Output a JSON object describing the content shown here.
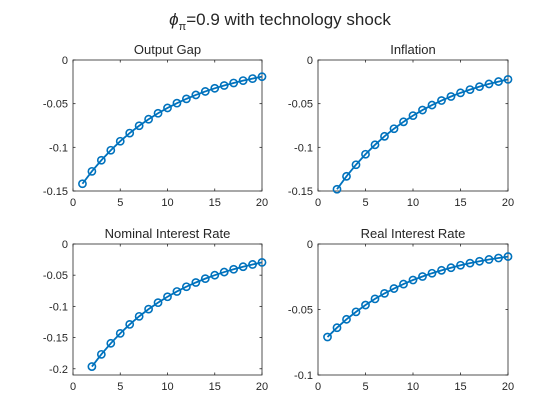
{
  "figure": {
    "suptitle": {
      "phi": "ϕ",
      "sub": "π",
      "rest": "=0.9 with technology shock"
    },
    "line_color": "#0072BD"
  },
  "chart_data": [
    {
      "type": "line",
      "title": "Output Gap",
      "xlabel": "",
      "ylabel": "",
      "xlim": [
        0,
        20
      ],
      "ylim": [
        -0.15,
        0
      ],
      "xticks": [
        0,
        5,
        10,
        15,
        20
      ],
      "yticks": [
        -0.15,
        -0.1,
        -0.05,
        0
      ],
      "xtick_labels": [
        "0",
        "5",
        "10",
        "15",
        "20"
      ],
      "ytick_labels": [
        "-0.15",
        "-0.1",
        "-0.05",
        "0"
      ],
      "marker": "circle",
      "x": [
        1,
        2,
        3,
        4,
        5,
        6,
        7,
        8,
        9,
        10,
        11,
        12,
        13,
        14,
        15,
        16,
        17,
        18,
        19,
        20
      ],
      "y": [
        -0.1417,
        -0.1275,
        -0.1148,
        -0.1033,
        -0.093,
        -0.0837,
        -0.0753,
        -0.0678,
        -0.061,
        -0.0549,
        -0.0494,
        -0.0445,
        -0.04,
        -0.036,
        -0.0324,
        -0.0292,
        -0.0263,
        -0.0236,
        -0.0213,
        -0.0191
      ]
    },
    {
      "type": "line",
      "title": "Inflation",
      "xlabel": "",
      "ylabel": "",
      "xlim": [
        0,
        20
      ],
      "ylim": [
        -0.15,
        0
      ],
      "xticks": [
        0,
        5,
        10,
        15,
        20
      ],
      "yticks": [
        -0.15,
        -0.1,
        -0.05,
        0
      ],
      "xtick_labels": [
        "0",
        "5",
        "10",
        "15",
        "20"
      ],
      "ytick_labels": [
        "-0.15",
        "-0.1",
        "-0.05",
        "0"
      ],
      "marker": "circle",
      "x": [
        2,
        3,
        4,
        5,
        6,
        7,
        8,
        9,
        10,
        11,
        12,
        13,
        14,
        15,
        16,
        17,
        18,
        19,
        20
      ],
      "y": [
        -0.148,
        -0.1332,
        -0.1199,
        -0.1079,
        -0.0971,
        -0.0874,
        -0.0787,
        -0.0708,
        -0.0637,
        -0.0573,
        -0.0516,
        -0.0464,
        -0.0418,
        -0.0376,
        -0.0339,
        -0.0305,
        -0.0274,
        -0.0247,
        -0.0222
      ]
    },
    {
      "type": "line",
      "title": "Nominal Interest Rate",
      "xlabel": "",
      "ylabel": "",
      "xlim": [
        0,
        20
      ],
      "ylim": [
        -0.21,
        0
      ],
      "xticks": [
        0,
        5,
        10,
        15,
        20
      ],
      "yticks": [
        -0.2,
        -0.15,
        -0.1,
        -0.05,
        0
      ],
      "xtick_labels": [
        "0",
        "5",
        "10",
        "15",
        "20"
      ],
      "ytick_labels": [
        "-0.2",
        "-0.15",
        "-0.1",
        "-0.05",
        "0"
      ],
      "marker": "circle",
      "x": [
        2,
        3,
        4,
        5,
        6,
        7,
        8,
        9,
        10,
        11,
        12,
        13,
        14,
        15,
        16,
        17,
        18,
        19,
        20
      ],
      "y": [
        -0.1965,
        -0.1769,
        -0.1592,
        -0.1433,
        -0.1289,
        -0.116,
        -0.1044,
        -0.094,
        -0.0846,
        -0.0761,
        -0.0685,
        -0.0617,
        -0.0555,
        -0.05,
        -0.045,
        -0.0405,
        -0.0364,
        -0.0328,
        -0.0295
      ]
    },
    {
      "type": "line",
      "title": "Real Interest Rate",
      "xlabel": "",
      "ylabel": "",
      "xlim": [
        0,
        20
      ],
      "ylim": [
        -0.1,
        0
      ],
      "xticks": [
        0,
        5,
        10,
        15,
        20
      ],
      "yticks": [
        -0.1,
        -0.05,
        0
      ],
      "xtick_labels": [
        "0",
        "5",
        "10",
        "15",
        "20"
      ],
      "ytick_labels": [
        "-0.1",
        "-0.05",
        "0"
      ],
      "marker": "circle",
      "x": [
        1,
        2,
        3,
        4,
        5,
        6,
        7,
        8,
        9,
        10,
        11,
        12,
        13,
        14,
        15,
        16,
        17,
        18,
        19,
        20
      ],
      "y": [
        -0.071,
        -0.0639,
        -0.0575,
        -0.0518,
        -0.0466,
        -0.0419,
        -0.0377,
        -0.034,
        -0.0306,
        -0.0275,
        -0.0248,
        -0.0223,
        -0.0201,
        -0.0181,
        -0.0162,
        -0.0146,
        -0.0132,
        -0.0118,
        -0.0107,
        -0.0096
      ]
    }
  ]
}
